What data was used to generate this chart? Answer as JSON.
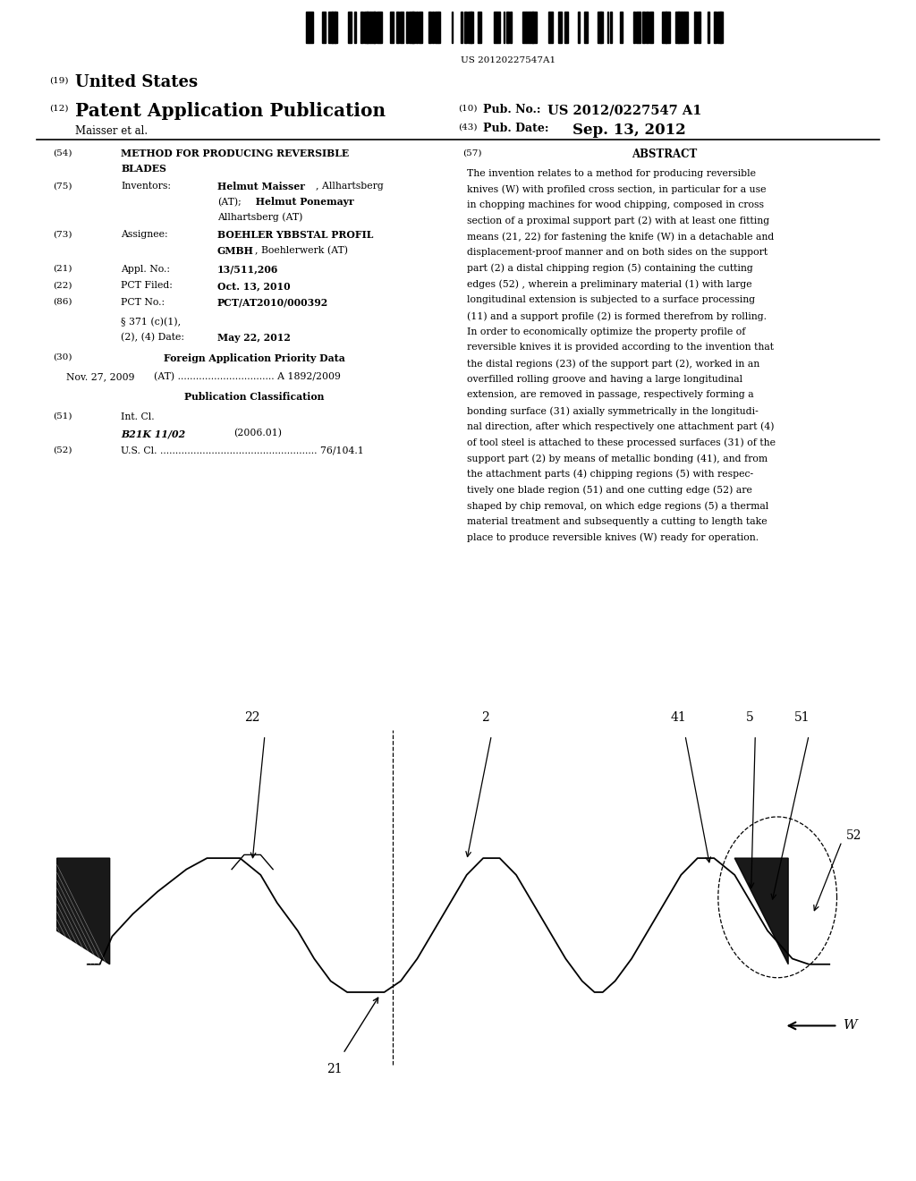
{
  "background_color": "#ffffff",
  "barcode_text": "US 20120227547A1",
  "abstract_lines": [
    "The invention relates to a method for producing reversible",
    "knives (W) with profiled cross section, in particular for a use",
    "in chopping machines for wood chipping, composed in cross",
    "section of a proximal support part (2) with at least one fitting",
    "means (21, 22) for fastening the knife (W) in a detachable and",
    "displacement-proof manner and on both sides on the support",
    "part (2) a distal chipping region (5) containing the cutting",
    "edges (52) , wherein a preliminary material (1) with large",
    "longitudinal extension is subjected to a surface processing",
    "(11) and a support profile (2) is formed therefrom by rolling.",
    "In order to economically optimize the property profile of",
    "reversible knives it is provided according to the invention that",
    "the distal regions (23) of the support part (2), worked in an",
    "overfilled rolling groove and having a large longitudinal",
    "extension, are removed in passage, respectively forming a",
    "bonding surface (31) axially symmetrically in the longitudi-",
    "nal direction, after which respectively one attachment part (4)",
    "of tool steel is attached to these processed surfaces (31) of the",
    "support part (2) by means of metallic bonding (41), and from",
    "the attachment parts (4) chipping regions (5) with respec-",
    "tively one blade region (51) and one cutting edge (52) are",
    "shaped by chip removal, on which edge regions (5) a thermal",
    "material treatment and subsequently a cutting to length take",
    "place to produce reversible knives (W) ready for operation."
  ]
}
